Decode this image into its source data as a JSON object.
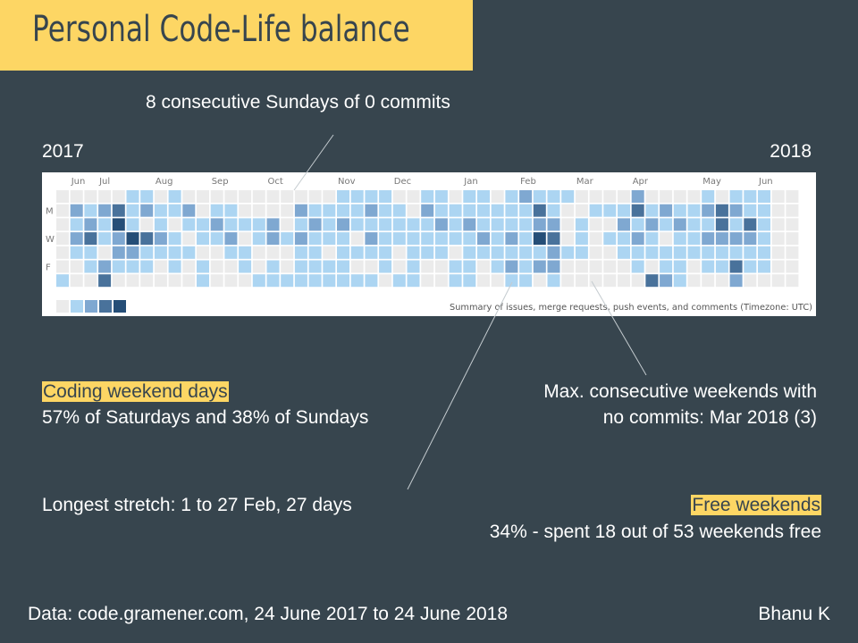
{
  "title": "Personal Code-Life balance",
  "annotations": {
    "sundays": "8 consecutive Sundays of 0 commits",
    "year_start": "2017",
    "year_end": "2018",
    "weekend_days_title": "Coding weekend days",
    "weekend_days_text": "57% of Saturdays and 38% of Sundays",
    "max_consec_line1": "Max. consecutive weekends with",
    "max_consec_line2": "no commits: Mar 2018 (3)",
    "longest_stretch": "Longest stretch: 1 to 27 Feb, 27 days",
    "free_weekends_title": "Free weekends",
    "free_weekends_text": "34% - spent 18 out of 53 weekends free"
  },
  "footer": {
    "source": "Data: code.gramener.com, 24 June 2017 to 24 June 2018",
    "author": "Bhanu K"
  },
  "chart_data": {
    "type": "heatmap",
    "month_labels": [
      {
        "label": "Jun",
        "week": 1
      },
      {
        "label": "Jul",
        "week": 3
      },
      {
        "label": "Aug",
        "week": 7
      },
      {
        "label": "Sep",
        "week": 11
      },
      {
        "label": "Oct",
        "week": 15
      },
      {
        "label": "Nov",
        "week": 20
      },
      {
        "label": "Dec",
        "week": 24
      },
      {
        "label": "Jan",
        "week": 29
      },
      {
        "label": "Feb",
        "week": 33
      },
      {
        "label": "Mar",
        "week": 37
      },
      {
        "label": "Apr",
        "week": 41
      },
      {
        "label": "May",
        "week": 46
      },
      {
        "label": "Jun",
        "week": 50
      }
    ],
    "day_labels": [
      {
        "label": "M",
        "day": 1
      },
      {
        "label": "W",
        "day": 3
      },
      {
        "label": "F",
        "day": 5
      }
    ],
    "legend_caption": "Summary of issues, merge requests, push events, and comments (Timezone: UTC)",
    "legend_levels": 5,
    "colors": [
      "#ebebeb",
      "#acd5f2",
      "#7fa8d1",
      "#49729b",
      "#254e77"
    ],
    "levels": [
      [
        0,
        0,
        0,
        0,
        0,
        0,
        1
      ],
      [
        0,
        2,
        1,
        2,
        1,
        0,
        0
      ],
      [
        0,
        1,
        2,
        3,
        1,
        1,
        0
      ],
      [
        0,
        2,
        1,
        1,
        0,
        2,
        3
      ],
      [
        0,
        3,
        4,
        2,
        2,
        1,
        0
      ],
      [
        1,
        1,
        1,
        4,
        2,
        1,
        0
      ],
      [
        1,
        2,
        0,
        3,
        1,
        1,
        0
      ],
      [
        0,
        1,
        1,
        2,
        1,
        0,
        0
      ],
      [
        1,
        1,
        0,
        1,
        1,
        1,
        0
      ],
      [
        0,
        2,
        1,
        0,
        1,
        0,
        0
      ],
      [
        0,
        0,
        1,
        1,
        0,
        1,
        1
      ],
      [
        0,
        1,
        2,
        1,
        0,
        0,
        0
      ],
      [
        0,
        1,
        1,
        2,
        1,
        0,
        0
      ],
      [
        0,
        0,
        1,
        0,
        1,
        1,
        0
      ],
      [
        0,
        0,
        1,
        1,
        0,
        0,
        1
      ],
      [
        0,
        0,
        2,
        2,
        0,
        1,
        1
      ],
      [
        0,
        0,
        0,
        1,
        0,
        0,
        1
      ],
      [
        0,
        2,
        1,
        2,
        1,
        1,
        1
      ],
      [
        0,
        1,
        2,
        1,
        1,
        1,
        1
      ],
      [
        0,
        1,
        1,
        1,
        0,
        1,
        1
      ],
      [
        1,
        1,
        2,
        1,
        1,
        1,
        1
      ],
      [
        1,
        1,
        1,
        0,
        1,
        0,
        1
      ],
      [
        1,
        2,
        1,
        2,
        1,
        0,
        1
      ],
      [
        1,
        1,
        1,
        1,
        1,
        1,
        0
      ],
      [
        0,
        1,
        1,
        1,
        0,
        0,
        1
      ],
      [
        0,
        0,
        1,
        1,
        1,
        1,
        1
      ],
      [
        1,
        2,
        1,
        1,
        1,
        0,
        0
      ],
      [
        1,
        1,
        2,
        1,
        1,
        0,
        0
      ],
      [
        0,
        1,
        1,
        1,
        0,
        1,
        1
      ],
      [
        1,
        1,
        2,
        1,
        1,
        1,
        1
      ],
      [
        1,
        1,
        1,
        2,
        1,
        0,
        0
      ],
      [
        0,
        1,
        1,
        1,
        1,
        1,
        0
      ],
      [
        1,
        1,
        1,
        2,
        1,
        2,
        1
      ],
      [
        2,
        1,
        1,
        1,
        1,
        1,
        1
      ],
      [
        1,
        3,
        2,
        4,
        1,
        2,
        0
      ],
      [
        1,
        1,
        2,
        3,
        2,
        2,
        1
      ],
      [
        1,
        0,
        0,
        0,
        1,
        0,
        0
      ],
      [
        0,
        0,
        1,
        1,
        1,
        0,
        0
      ],
      [
        0,
        1,
        0,
        0,
        0,
        0,
        0
      ],
      [
        0,
        1,
        0,
        1,
        0,
        0,
        0
      ],
      [
        0,
        1,
        2,
        1,
        1,
        0,
        0
      ],
      [
        2,
        3,
        1,
        2,
        1,
        1,
        0
      ],
      [
        0,
        1,
        2,
        1,
        1,
        0,
        3
      ],
      [
        0,
        2,
        1,
        0,
        1,
        1,
        2
      ],
      [
        0,
        1,
        2,
        1,
        1,
        1,
        1
      ],
      [
        0,
        1,
        1,
        1,
        1,
        0,
        0
      ],
      [
        1,
        2,
        1,
        2,
        1,
        1,
        0
      ],
      [
        0,
        3,
        3,
        2,
        1,
        1,
        0
      ],
      [
        1,
        2,
        1,
        2,
        1,
        3,
        2
      ],
      [
        1,
        1,
        3,
        2,
        1,
        1,
        0
      ],
      [
        1,
        1,
        1,
        1,
        1,
        1,
        0
      ],
      [
        0,
        0,
        0,
        0,
        0,
        0,
        0
      ],
      [
        0,
        0,
        0,
        0,
        0,
        0,
        0
      ]
    ]
  }
}
